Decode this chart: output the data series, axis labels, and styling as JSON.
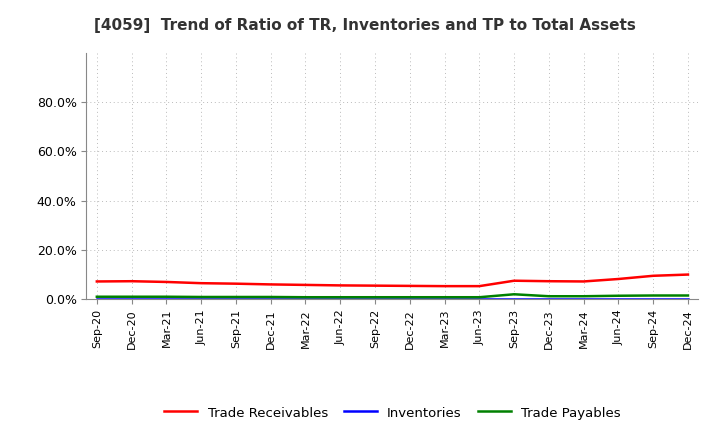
{
  "title": "[4059]  Trend of Ratio of TR, Inventories and TP to Total Assets",
  "x_labels": [
    "Sep-20",
    "Dec-20",
    "Mar-21",
    "Jun-21",
    "Sep-21",
    "Dec-21",
    "Mar-22",
    "Jun-22",
    "Sep-22",
    "Dec-22",
    "Mar-23",
    "Jun-23",
    "Sep-23",
    "Dec-23",
    "Mar-24",
    "Jun-24",
    "Sep-24",
    "Dec-24"
  ],
  "trade_receivables": [
    0.072,
    0.073,
    0.07,
    0.065,
    0.063,
    0.06,
    0.058,
    0.056,
    0.055,
    0.054,
    0.053,
    0.053,
    0.075,
    0.073,
    0.072,
    0.082,
    0.095,
    0.1
  ],
  "inventories": [
    0.0003,
    0.0003,
    0.0003,
    0.0003,
    0.0003,
    0.0003,
    0.0003,
    0.0003,
    0.0003,
    0.0003,
    0.0003,
    0.0003,
    0.0003,
    0.0003,
    0.0003,
    0.0003,
    0.0003,
    0.0003
  ],
  "trade_payables": [
    0.01,
    0.01,
    0.01,
    0.009,
    0.009,
    0.009,
    0.008,
    0.008,
    0.008,
    0.008,
    0.008,
    0.008,
    0.02,
    0.012,
    0.012,
    0.014,
    0.015,
    0.015
  ],
  "tr_color": "#FF0000",
  "inv_color": "#0000FF",
  "tp_color": "#008000",
  "ylim_max": 1.0,
  "yticks": [
    0.0,
    0.2,
    0.4,
    0.6,
    0.8
  ],
  "background_color": "#FFFFFF",
  "grid_color": "#BBBBBB",
  "legend_labels": [
    "Trade Receivables",
    "Inventories",
    "Trade Payables"
  ]
}
